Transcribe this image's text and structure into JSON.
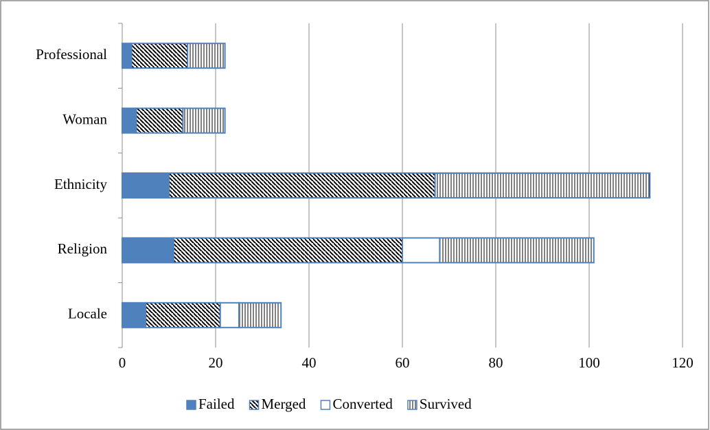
{
  "chart_data": {
    "type": "stacked-barh",
    "categories": [
      "Locale",
      "Religion",
      "Ethnicity",
      "Woman",
      "Professional"
    ],
    "series": [
      {
        "name": "Failed",
        "color": "#4f81bd",
        "pattern": "solid",
        "values": [
          5,
          11,
          10,
          3,
          2
        ]
      },
      {
        "name": "Merged",
        "color": "#4f81bd",
        "pattern": "diagonal",
        "values": [
          16,
          49,
          57,
          10,
          12
        ]
      },
      {
        "name": "Converted",
        "color": "#4f81bd",
        "pattern": "none",
        "values": [
          4,
          8,
          0,
          0,
          0
        ]
      },
      {
        "name": "Survived",
        "color": "#4f81bd",
        "pattern": "vertical",
        "values": [
          9,
          33,
          46,
          9,
          8
        ]
      }
    ],
    "xlim": [
      0,
      120
    ],
    "xticks": [
      0,
      20,
      40,
      60,
      80,
      100,
      120
    ],
    "grid": true,
    "legend": "bottom"
  }
}
